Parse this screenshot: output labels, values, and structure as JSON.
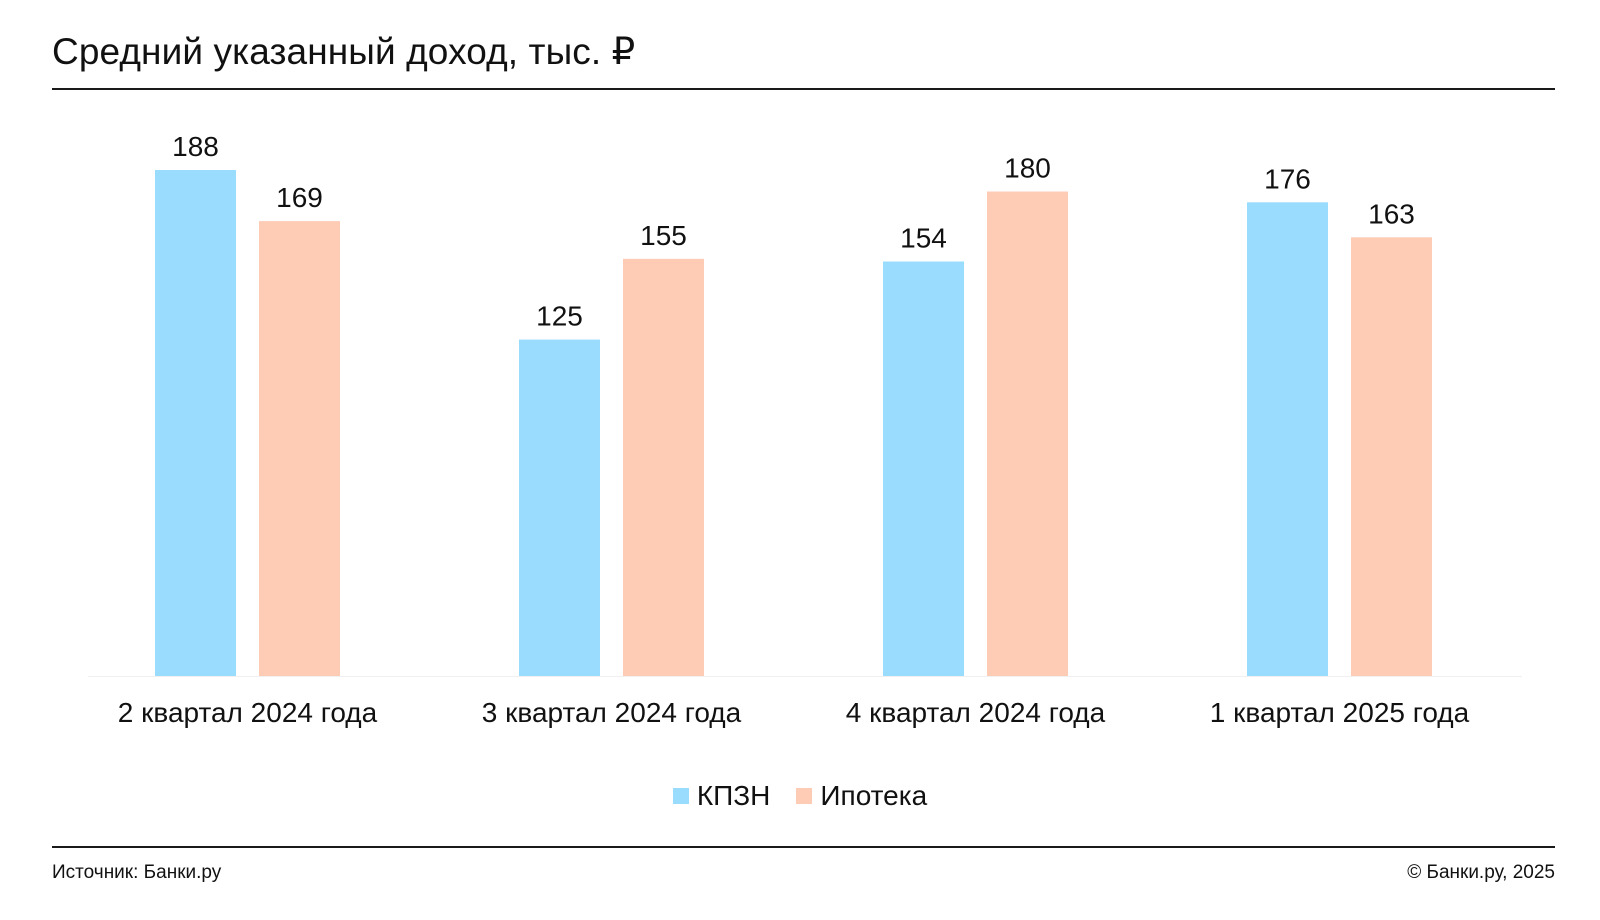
{
  "title": "Средний указанный доход, тыс. ₽",
  "source": "Источник: Банки.ру",
  "copyright": "© Банки.ру, 2025",
  "chart_data": {
    "type": "bar",
    "title": "Средний указанный доход, тыс. ₽",
    "categories": [
      "2 квартал 2024 года",
      "3 квартал 2024 года",
      "4 квартал 2024 года",
      "1 квартал 2025 года"
    ],
    "series": [
      {
        "name": "КПЗН",
        "color": "#99dcfe",
        "values": [
          188,
          125,
          154,
          176
        ]
      },
      {
        "name": "Ипотека",
        "color": "#fecbb5",
        "values": [
          169,
          155,
          180,
          163
        ]
      }
    ],
    "ylim": [
      0,
      188
    ],
    "grid": false,
    "legend": "bottom-center",
    "data_labels": true
  }
}
